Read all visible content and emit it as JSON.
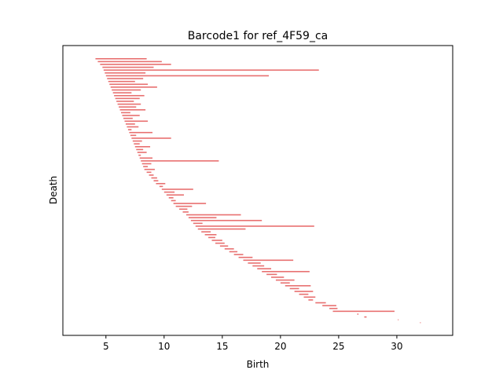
{
  "chart_data": {
    "type": "barcode",
    "title": "Barcode1 for ref_4F59_ca",
    "xlabel": "Birth",
    "ylabel": "Death",
    "xlim": [
      1.3,
      34.8
    ],
    "xticks": [
      5,
      10,
      15,
      20,
      25,
      30
    ],
    "xtick_labels": [
      "5",
      "10",
      "15",
      "20",
      "25",
      "30"
    ],
    "yticks": [],
    "bar_color": "#e87070",
    "grid": false,
    "legend": "none",
    "bars": [
      {
        "birth": 4.1,
        "death": 8.5
      },
      {
        "birth": 4.3,
        "death": 9.8
      },
      {
        "birth": 4.5,
        "death": 10.6
      },
      {
        "birth": 4.7,
        "death": 9.1
      },
      {
        "birth": 4.8,
        "death": 23.3
      },
      {
        "birth": 4.9,
        "death": 8.4
      },
      {
        "birth": 5.0,
        "death": 19.0
      },
      {
        "birth": 5.1,
        "death": 8.2
      },
      {
        "birth": 5.2,
        "death": 7.5
      },
      {
        "birth": 5.3,
        "death": 8.6
      },
      {
        "birth": 5.4,
        "death": 9.4
      },
      {
        "birth": 5.5,
        "death": 8.0
      },
      {
        "birth": 5.6,
        "death": 7.2
      },
      {
        "birth": 5.7,
        "death": 8.3
      },
      {
        "birth": 5.8,
        "death": 7.9
      },
      {
        "birth": 5.9,
        "death": 7.4
      },
      {
        "birth": 6.0,
        "death": 8.0
      },
      {
        "birth": 6.1,
        "death": 7.6
      },
      {
        "birth": 6.2,
        "death": 8.4
      },
      {
        "birth": 6.3,
        "death": 7.1
      },
      {
        "birth": 6.4,
        "death": 7.9
      },
      {
        "birth": 6.5,
        "death": 7.3
      },
      {
        "birth": 6.6,
        "death": 8.6
      },
      {
        "birth": 6.7,
        "death": 7.5
      },
      {
        "birth": 6.8,
        "death": 7.8
      },
      {
        "birth": 6.9,
        "death": 7.2
      },
      {
        "birth": 7.0,
        "death": 9.0
      },
      {
        "birth": 7.1,
        "death": 7.6
      },
      {
        "birth": 7.2,
        "death": 10.6
      },
      {
        "birth": 7.3,
        "death": 8.1
      },
      {
        "birth": 7.4,
        "death": 7.9
      },
      {
        "birth": 7.5,
        "death": 8.8
      },
      {
        "birth": 7.6,
        "death": 8.2
      },
      {
        "birth": 7.7,
        "death": 8.5
      },
      {
        "birth": 7.8,
        "death": 8.0
      },
      {
        "birth": 7.9,
        "death": 9.0
      },
      {
        "birth": 8.0,
        "death": 14.7
      },
      {
        "birth": 8.1,
        "death": 8.9
      },
      {
        "birth": 8.2,
        "death": 8.6
      },
      {
        "birth": 8.3,
        "death": 9.2
      },
      {
        "birth": 8.5,
        "death": 8.9
      },
      {
        "birth": 8.7,
        "death": 9.1
      },
      {
        "birth": 8.9,
        "death": 9.4
      },
      {
        "birth": 9.1,
        "death": 9.5
      },
      {
        "birth": 9.3,
        "death": 10.1
      },
      {
        "birth": 9.6,
        "death": 9.9
      },
      {
        "birth": 9.8,
        "death": 12.5
      },
      {
        "birth": 10.0,
        "death": 10.9
      },
      {
        "birth": 10.2,
        "death": 11.7
      },
      {
        "birth": 10.4,
        "death": 10.8
      },
      {
        "birth": 10.6,
        "death": 11.0
      },
      {
        "birth": 10.8,
        "death": 13.6
      },
      {
        "birth": 11.0,
        "death": 12.4
      },
      {
        "birth": 11.3,
        "death": 12.0
      },
      {
        "birth": 11.6,
        "death": 12.1
      },
      {
        "birth": 11.9,
        "death": 16.6
      },
      {
        "birth": 12.1,
        "death": 14.5
      },
      {
        "birth": 12.3,
        "death": 18.4
      },
      {
        "birth": 12.5,
        "death": 13.3
      },
      {
        "birth": 12.7,
        "death": 22.9
      },
      {
        "birth": 12.9,
        "death": 17.0
      },
      {
        "birth": 13.2,
        "death": 14.0
      },
      {
        "birth": 13.5,
        "death": 14.5
      },
      {
        "birth": 13.8,
        "death": 14.4
      },
      {
        "birth": 14.1,
        "death": 15.0
      },
      {
        "birth": 14.4,
        "death": 15.2
      },
      {
        "birth": 14.8,
        "death": 15.5
      },
      {
        "birth": 15.2,
        "death": 16.0
      },
      {
        "birth": 15.6,
        "death": 16.3
      },
      {
        "birth": 16.0,
        "death": 16.8
      },
      {
        "birth": 16.4,
        "death": 17.6
      },
      {
        "birth": 16.8,
        "death": 21.1
      },
      {
        "birth": 17.2,
        "death": 18.3
      },
      {
        "birth": 17.6,
        "death": 18.6
      },
      {
        "birth": 18.0,
        "death": 19.2
      },
      {
        "birth": 18.4,
        "death": 22.5
      },
      {
        "birth": 18.8,
        "death": 19.7
      },
      {
        "birth": 19.2,
        "death": 20.3
      },
      {
        "birth": 19.6,
        "death": 21.2
      },
      {
        "birth": 20.0,
        "death": 20.8
      },
      {
        "birth": 20.4,
        "death": 22.6
      },
      {
        "birth": 20.8,
        "death": 21.6
      },
      {
        "birth": 21.2,
        "death": 22.8
      },
      {
        "birth": 21.6,
        "death": 22.4
      },
      {
        "birth": 22.0,
        "death": 23.0
      },
      {
        "birth": 22.4,
        "death": 22.8
      },
      {
        "birth": 23.0,
        "death": 23.9
      },
      {
        "birth": 23.6,
        "death": 24.8
      },
      {
        "birth": 24.2,
        "death": 24.9
      },
      {
        "birth": 24.5,
        "death": 29.8
      },
      {
        "birth": 26.6,
        "death": 26.7
      },
      {
        "birth": 27.2,
        "death": 27.4
      },
      {
        "birth": 30.1,
        "death": 30.15
      },
      {
        "birth": 32.0,
        "death": 32.05
      }
    ]
  }
}
